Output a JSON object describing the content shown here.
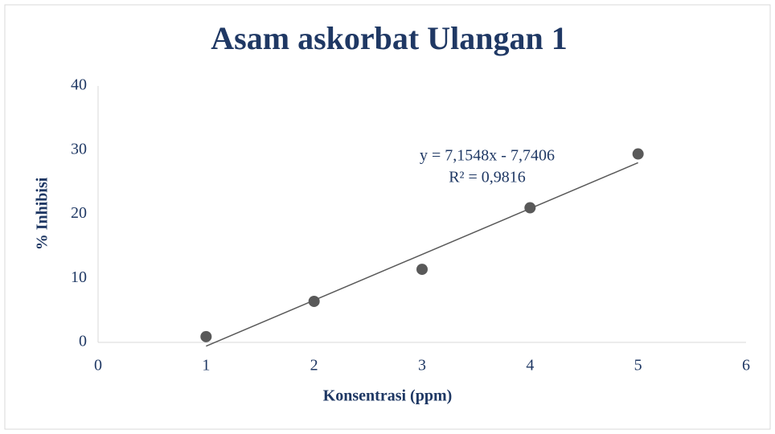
{
  "chart_data": {
    "type": "scatter",
    "title": "Asam askorbat Ulangan 1",
    "x_label": "Konsentrasi (ppm)",
    "y_label": "% Inhibisi",
    "x": [
      1,
      2,
      3,
      4,
      5
    ],
    "series": [
      {
        "color": "#595959",
        "values": [
          0.9,
          6.4,
          11.4,
          21.0,
          29.4
        ]
      }
    ],
    "xlim": [
      0,
      6
    ],
    "xticks": [
      0,
      1,
      2,
      3,
      4,
      5,
      6
    ],
    "ylim": [
      0,
      40
    ],
    "yticks": [
      0,
      10,
      20,
      30,
      40
    ],
    "grid": false,
    "trendline": {
      "slope": 7.1548,
      "intercept": -7.7406,
      "color": "#595959",
      "equation_label": "y = 7,1548x - 7,7406",
      "r2_label": "R² = 0,9816"
    }
  }
}
